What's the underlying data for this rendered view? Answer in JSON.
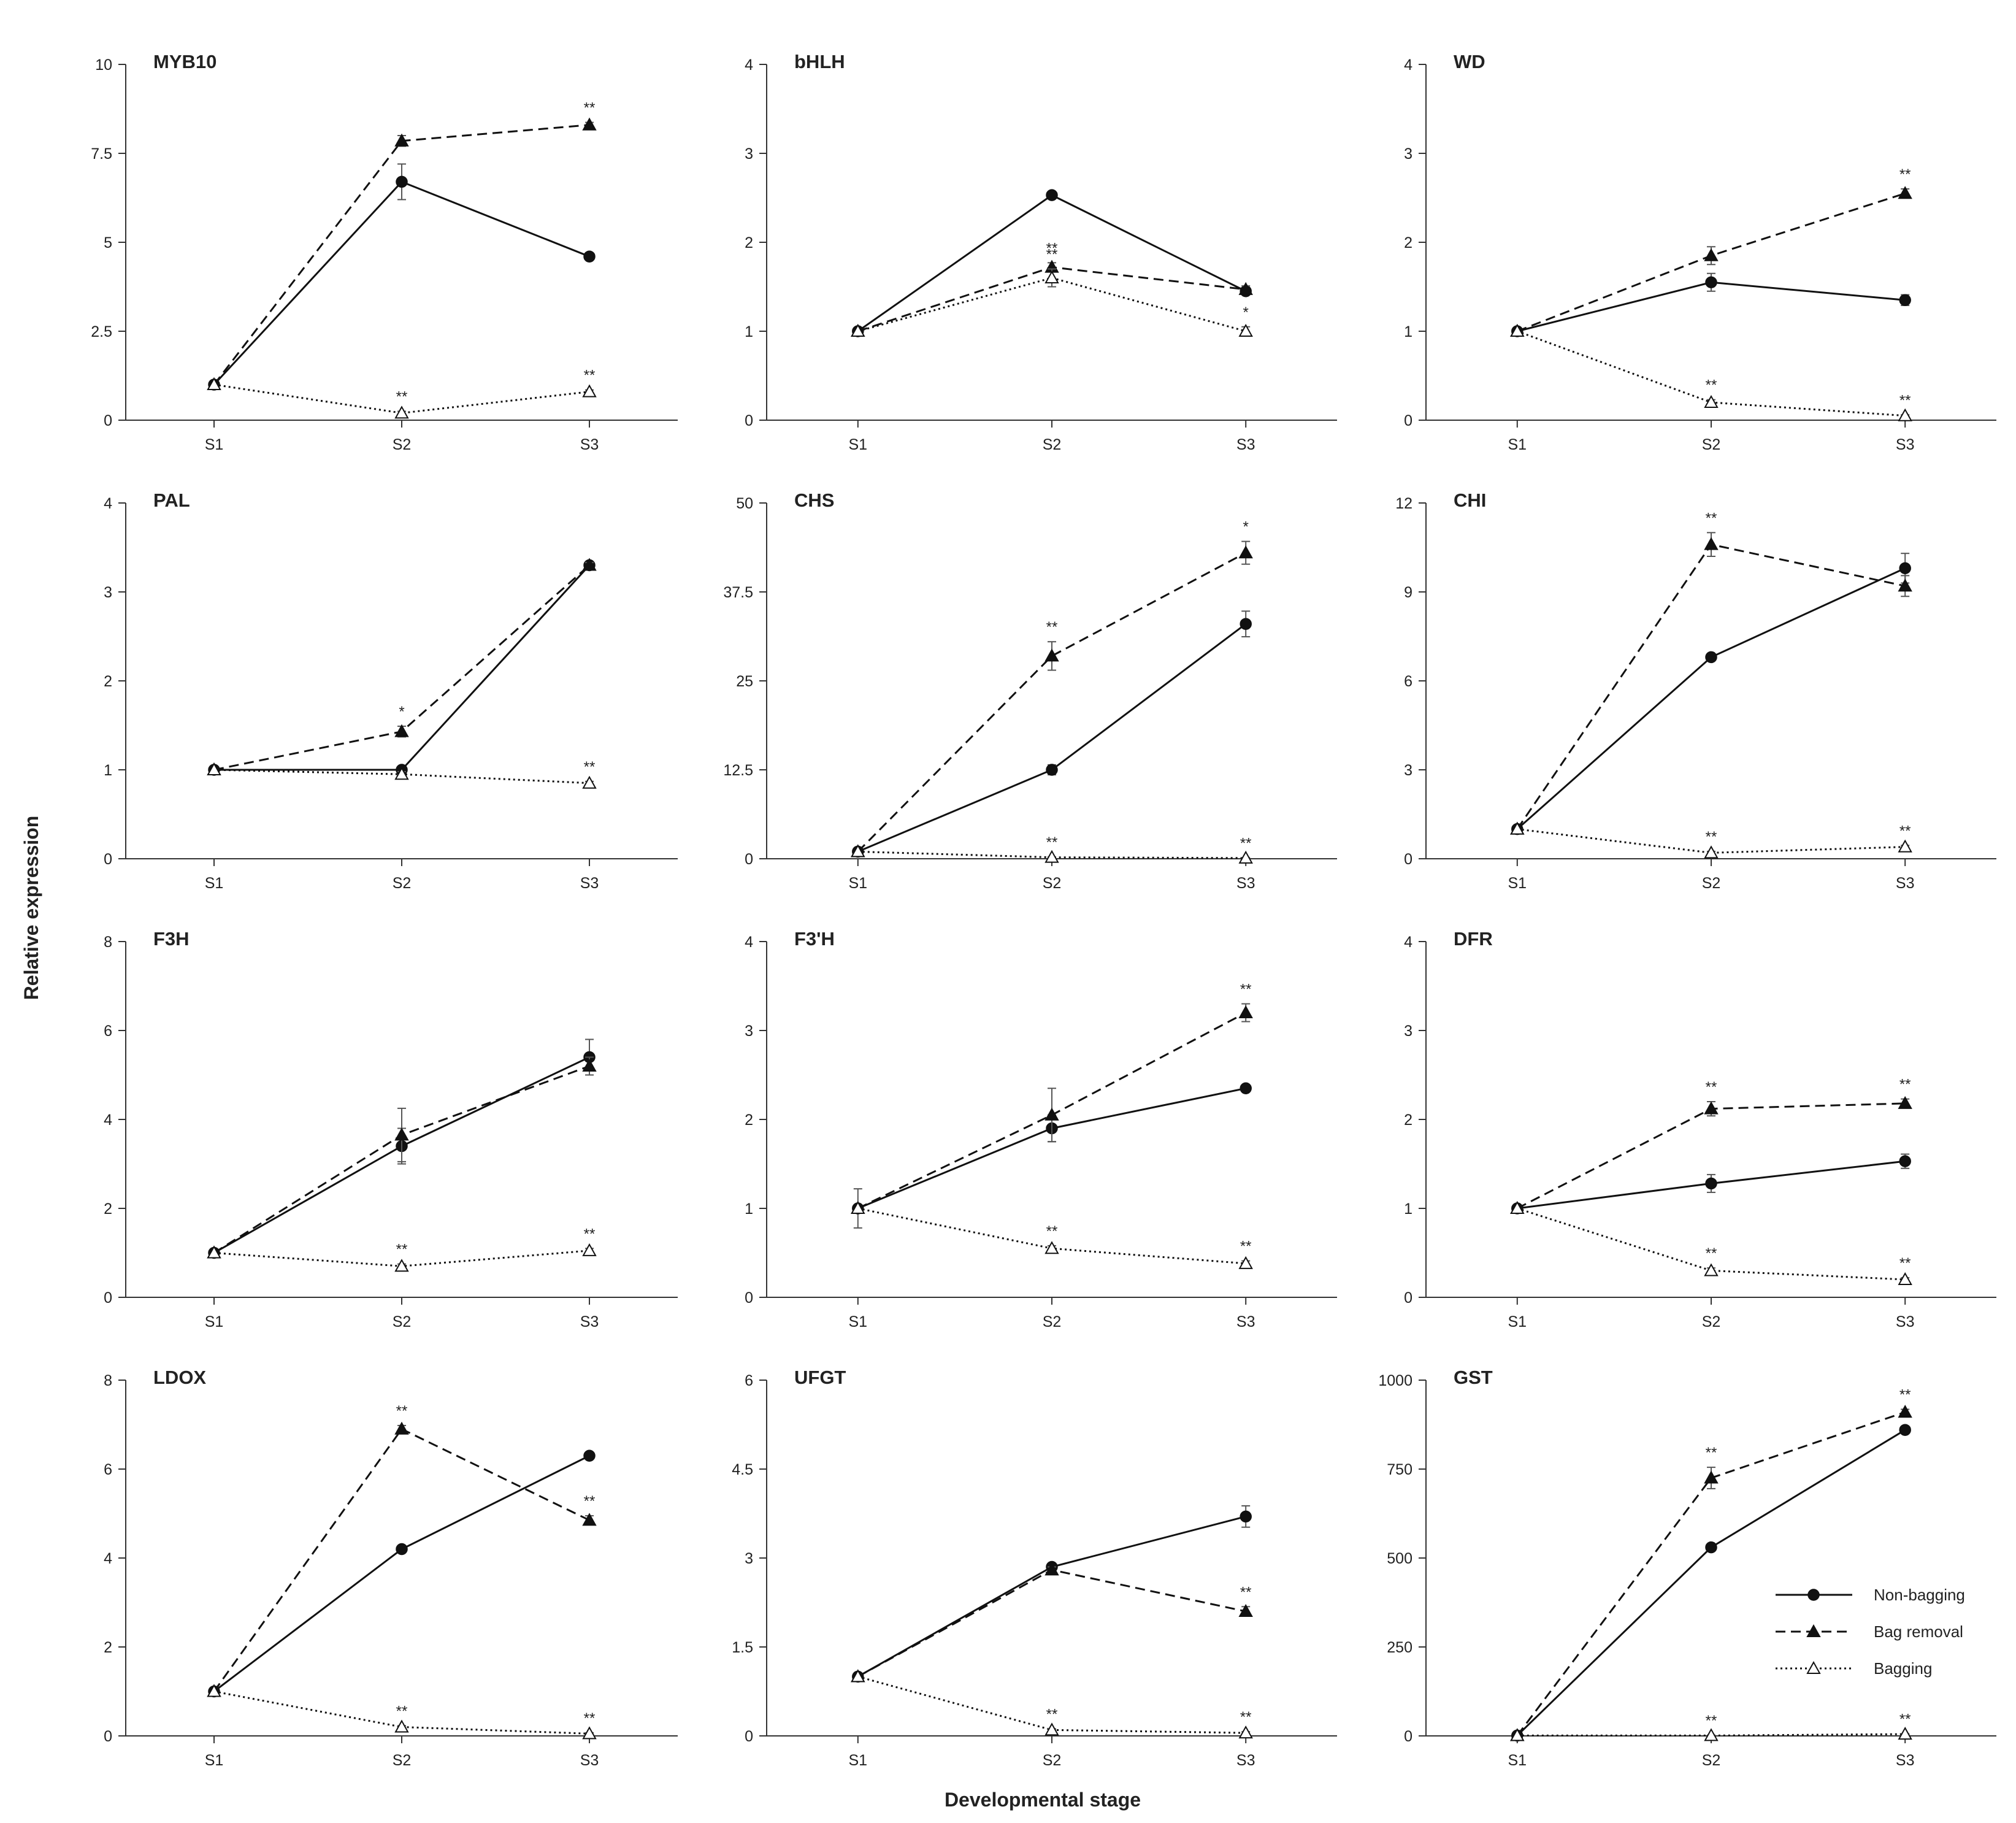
{
  "figure": {
    "ylabel": "Relative expression",
    "xlabel": "Developmental stage"
  },
  "legend": [
    {
      "name": "Non-bagging",
      "marker": "filled-circle",
      "line": "solid"
    },
    {
      "name": "Bag removal",
      "marker": "filled-triangle",
      "line": "dashed"
    },
    {
      "name": "Bagging",
      "marker": "open-triangle",
      "line": "dotted"
    }
  ],
  "chart_data": [
    {
      "type": "line",
      "title": "MYB10",
      "categories": [
        "S1",
        "S2",
        "S3"
      ],
      "ylim": [
        0,
        10
      ],
      "yticks": [
        "0",
        "2.5",
        "5",
        "7.5",
        "10"
      ],
      "series": [
        {
          "name": "Non-bagging",
          "values": [
            1,
            6.7,
            4.6
          ],
          "errors": [
            0,
            0.5,
            0.05
          ],
          "sig": [
            "",
            "",
            ""
          ]
        },
        {
          "name": "Bag removal",
          "values": [
            1,
            7.85,
            8.3
          ],
          "errors": [
            0,
            0.15,
            0.07
          ],
          "sig": [
            "",
            "",
            "**"
          ]
        },
        {
          "name": "Bagging",
          "values": [
            1,
            0.2,
            0.8
          ],
          "errors": [
            0,
            0.05,
            0.05
          ],
          "sig": [
            "",
            "**",
            "**"
          ]
        }
      ]
    },
    {
      "type": "line",
      "title": "bHLH",
      "categories": [
        "S1",
        "S2",
        "S3"
      ],
      "ylim": [
        0,
        4
      ],
      "yticks": [
        "0",
        "1",
        "2",
        "3",
        "4"
      ],
      "series": [
        {
          "name": "Non-bagging",
          "values": [
            1,
            2.53,
            1.45
          ],
          "errors": [
            0,
            0.03,
            0.04
          ],
          "sig": [
            "",
            "",
            ""
          ]
        },
        {
          "name": "Bag removal",
          "values": [
            1,
            1.72,
            1.47
          ],
          "errors": [
            0,
            0.05,
            0.04
          ],
          "sig": [
            "",
            "**",
            ""
          ]
        },
        {
          "name": "Bagging",
          "values": [
            1,
            1.6,
            1.0
          ],
          "errors": [
            0,
            0.1,
            0.05
          ],
          "sig": [
            "",
            "**",
            "*"
          ]
        }
      ]
    },
    {
      "type": "line",
      "title": "WD",
      "categories": [
        "S1",
        "S2",
        "S3"
      ],
      "ylim": [
        0,
        4
      ],
      "yticks": [
        "0",
        "1",
        "2",
        "3",
        "4"
      ],
      "series": [
        {
          "name": "Non-bagging",
          "values": [
            1,
            1.55,
            1.35
          ],
          "errors": [
            0,
            0.1,
            0.06
          ],
          "sig": [
            "",
            "",
            ""
          ]
        },
        {
          "name": "Bag removal",
          "values": [
            1,
            1.85,
            2.55
          ],
          "errors": [
            0,
            0.1,
            0.05
          ],
          "sig": [
            "",
            "",
            "**"
          ]
        },
        {
          "name": "Bagging",
          "values": [
            1,
            0.2,
            0.05
          ],
          "errors": [
            0,
            0.03,
            0.01
          ],
          "sig": [
            "",
            "**",
            "**"
          ]
        }
      ]
    },
    {
      "type": "line",
      "title": "PAL",
      "categories": [
        "S1",
        "S2",
        "S3"
      ],
      "ylim": [
        0,
        4
      ],
      "yticks": [
        "0",
        "1",
        "2",
        "3",
        "4"
      ],
      "series": [
        {
          "name": "Non-bagging",
          "values": [
            1,
            1.0,
            3.3
          ],
          "errors": [
            0,
            0.03,
            0.03
          ],
          "sig": [
            "",
            "",
            ""
          ]
        },
        {
          "name": "Bag removal",
          "values": [
            1,
            1.43,
            3.3
          ],
          "errors": [
            0,
            0.06,
            0.03
          ],
          "sig": [
            "",
            "*",
            ""
          ]
        },
        {
          "name": "Bagging",
          "values": [
            1,
            0.95,
            0.85
          ],
          "errors": [
            0,
            0.03,
            0.02
          ],
          "sig": [
            "",
            "",
            "**"
          ]
        }
      ]
    },
    {
      "type": "line",
      "title": "CHS",
      "categories": [
        "S1",
        "S2",
        "S3"
      ],
      "ylim": [
        0,
        50
      ],
      "yticks": [
        "0",
        "12.5",
        "25",
        "37.5",
        "50"
      ],
      "series": [
        {
          "name": "Non-bagging",
          "values": [
            1,
            12.5,
            33
          ],
          "errors": [
            0,
            0.7,
            1.8
          ],
          "sig": [
            "",
            "",
            ""
          ]
        },
        {
          "name": "Bag removal",
          "values": [
            1,
            28.5,
            43
          ],
          "errors": [
            0,
            2.0,
            1.6
          ],
          "sig": [
            "",
            "**",
            "*"
          ]
        },
        {
          "name": "Bagging",
          "values": [
            1,
            0.2,
            0.1
          ],
          "errors": [
            0,
            0.05,
            0.05
          ],
          "sig": [
            "",
            "**",
            "**"
          ]
        }
      ]
    },
    {
      "type": "line",
      "title": "CHI",
      "categories": [
        "S1",
        "S2",
        "S3"
      ],
      "ylim": [
        0,
        12
      ],
      "yticks": [
        "0",
        "3",
        "6",
        "9",
        "12"
      ],
      "series": [
        {
          "name": "Non-bagging",
          "values": [
            1,
            6.8,
            9.8
          ],
          "errors": [
            0,
            0.1,
            0.5
          ],
          "sig": [
            "",
            "",
            ""
          ]
        },
        {
          "name": "Bag removal",
          "values": [
            1,
            10.6,
            9.2
          ],
          "errors": [
            0,
            0.4,
            0.35
          ],
          "sig": [
            "",
            "**",
            ""
          ]
        },
        {
          "name": "Bagging",
          "values": [
            1,
            0.2,
            0.4
          ],
          "errors": [
            0,
            0.05,
            0.05
          ],
          "sig": [
            "",
            "**",
            "**"
          ]
        }
      ]
    },
    {
      "type": "line",
      "title": "F3H",
      "categories": [
        "S1",
        "S2",
        "S3"
      ],
      "ylim": [
        0,
        8
      ],
      "yticks": [
        "0",
        "2",
        "4",
        "6",
        "8"
      ],
      "series": [
        {
          "name": "Non-bagging",
          "values": [
            1,
            3.4,
            5.4
          ],
          "errors": [
            0,
            0.4,
            0.4
          ],
          "sig": [
            "",
            "",
            ""
          ]
        },
        {
          "name": "Bag removal",
          "values": [
            1,
            3.65,
            5.2
          ],
          "errors": [
            0,
            0.6,
            0.2
          ],
          "sig": [
            "",
            "",
            ""
          ]
        },
        {
          "name": "Bagging",
          "values": [
            1,
            0.7,
            1.05
          ],
          "errors": [
            0,
            0.05,
            0.05
          ],
          "sig": [
            "",
            "**",
            "**"
          ]
        }
      ]
    },
    {
      "type": "line",
      "title": "F3'H",
      "categories": [
        "S1",
        "S2",
        "S3"
      ],
      "ylim": [
        0,
        4
      ],
      "yticks": [
        "0",
        "1",
        "2",
        "3",
        "4"
      ],
      "series": [
        {
          "name": "Non-bagging",
          "values": [
            1,
            1.9,
            2.35
          ],
          "errors": [
            0.22,
            0.15,
            0.03
          ],
          "sig": [
            "",
            "",
            ""
          ]
        },
        {
          "name": "Bag removal",
          "values": [
            1,
            2.05,
            3.2
          ],
          "errors": [
            0,
            0.3,
            0.1
          ],
          "sig": [
            "",
            "",
            "**"
          ]
        },
        {
          "name": "Bagging",
          "values": [
            1,
            0.55,
            0.38
          ],
          "errors": [
            0,
            0.03,
            0.03
          ],
          "sig": [
            "",
            "**",
            "**"
          ]
        }
      ]
    },
    {
      "type": "line",
      "title": "DFR",
      "categories": [
        "S1",
        "S2",
        "S3"
      ],
      "ylim": [
        0,
        4
      ],
      "yticks": [
        "0",
        "1",
        "2",
        "3",
        "4"
      ],
      "series": [
        {
          "name": "Non-bagging",
          "values": [
            1,
            1.28,
            1.53
          ],
          "errors": [
            0,
            0.1,
            0.08
          ],
          "sig": [
            "",
            "",
            ""
          ]
        },
        {
          "name": "Bag removal",
          "values": [
            1,
            2.12,
            2.18
          ],
          "errors": [
            0,
            0.08,
            0.05
          ],
          "sig": [
            "",
            "**",
            "**"
          ]
        },
        {
          "name": "Bagging",
          "values": [
            1,
            0.3,
            0.2
          ],
          "errors": [
            0,
            0.03,
            0.02
          ],
          "sig": [
            "",
            "**",
            "**"
          ]
        }
      ]
    },
    {
      "type": "line",
      "title": "LDOX",
      "categories": [
        "S1",
        "S2",
        "S3"
      ],
      "ylim": [
        0,
        8
      ],
      "yticks": [
        "0",
        "2",
        "4",
        "6",
        "8"
      ],
      "series": [
        {
          "name": "Non-bagging",
          "values": [
            1,
            4.2,
            6.3
          ],
          "errors": [
            0,
            0.05,
            0.05
          ],
          "sig": [
            "",
            "",
            ""
          ]
        },
        {
          "name": "Bag removal",
          "values": [
            1,
            6.9,
            4.85
          ],
          "errors": [
            0,
            0.08,
            0.1
          ],
          "sig": [
            "",
            "**",
            "**"
          ]
        },
        {
          "name": "Bagging",
          "values": [
            1,
            0.2,
            0.05
          ],
          "errors": [
            0,
            0.03,
            0.02
          ],
          "sig": [
            "",
            "**",
            "**"
          ]
        }
      ]
    },
    {
      "type": "line",
      "title": "UFGT",
      "categories": [
        "S1",
        "S2",
        "S3"
      ],
      "ylim": [
        0,
        6
      ],
      "yticks": [
        "0",
        "1.5",
        "3",
        "4.5",
        "6"
      ],
      "series": [
        {
          "name": "Non-bagging",
          "values": [
            1,
            2.85,
            3.7
          ],
          "errors": [
            0,
            0.05,
            0.18
          ],
          "sig": [
            "",
            "",
            ""
          ]
        },
        {
          "name": "Bag removal",
          "values": [
            1,
            2.8,
            2.1
          ],
          "errors": [
            0,
            0.05,
            0.08
          ],
          "sig": [
            "",
            "",
            "**"
          ]
        },
        {
          "name": "Bagging",
          "values": [
            1,
            0.1,
            0.05
          ],
          "errors": [
            0,
            0.02,
            0.02
          ],
          "sig": [
            "",
            "**",
            "**"
          ]
        }
      ]
    },
    {
      "type": "line",
      "title": "GST",
      "categories": [
        "S1",
        "S2",
        "S3"
      ],
      "ylim": [
        0,
        1000
      ],
      "yticks": [
        "0",
        "250",
        "500",
        "750",
        "1000"
      ],
      "series": [
        {
          "name": "Non-bagging",
          "values": [
            1,
            530,
            860
          ],
          "errors": [
            0,
            10,
            8
          ],
          "sig": [
            "",
            "",
            ""
          ]
        },
        {
          "name": "Bag removal",
          "values": [
            1,
            725,
            910
          ],
          "errors": [
            0,
            30,
            8
          ],
          "sig": [
            "",
            "**",
            "**"
          ]
        },
        {
          "name": "Bagging",
          "values": [
            1,
            1,
            5
          ],
          "errors": [
            0,
            1,
            1
          ],
          "sig": [
            "",
            "**",
            "**"
          ]
        }
      ]
    }
  ]
}
